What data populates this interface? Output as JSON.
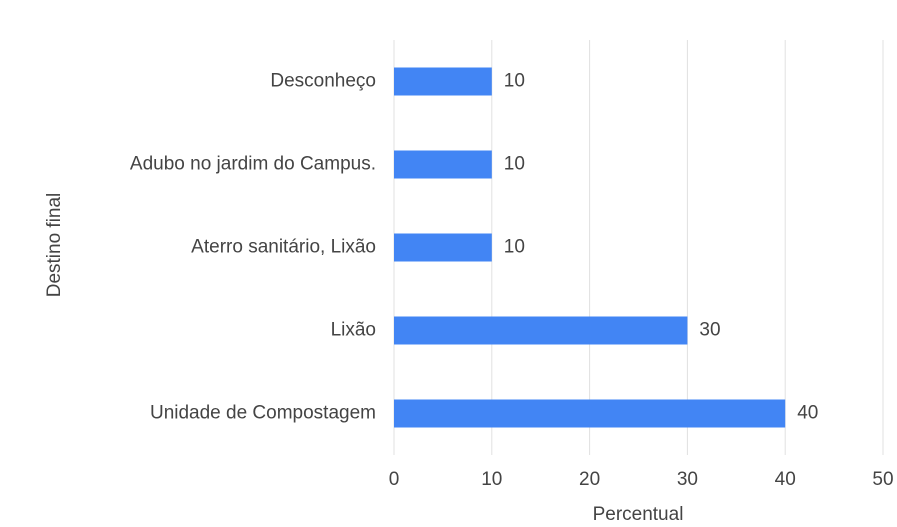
{
  "chart_data": {
    "type": "bar",
    "orientation": "horizontal",
    "categories": [
      "Desconheço",
      "Adubo no jardim do Campus.",
      "Aterro sanitário, Lixão",
      "Lixão",
      "Unidade de Compostagem"
    ],
    "values": [
      10,
      10,
      10,
      30,
      40
    ],
    "color": "#4285f4",
    "x_label": "Percentual",
    "y_label": "Destino final",
    "xlim": [
      0,
      50
    ],
    "xticks": [
      0,
      10,
      20,
      30,
      40,
      50
    ],
    "grid": true
  }
}
